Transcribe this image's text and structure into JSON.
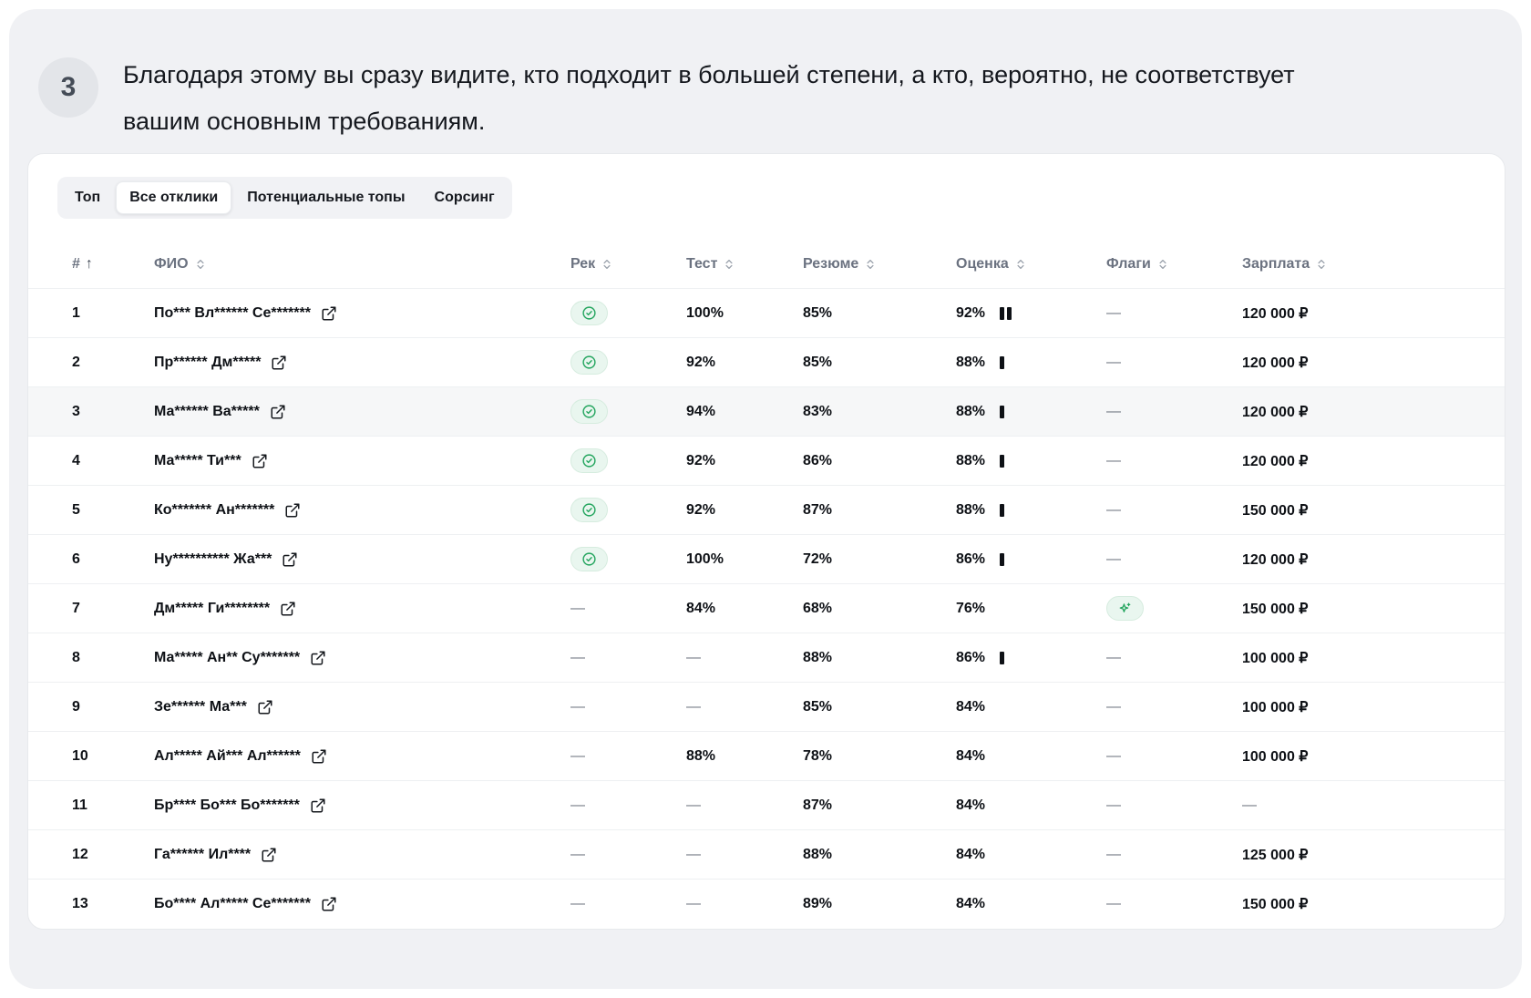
{
  "step": {
    "number": "3",
    "text": "Благодаря этому вы сразу видите, кто подходит в большей степени, а кто, вероятно, не соответствует вашим основным требованиям."
  },
  "tabs": [
    {
      "label": "Топ",
      "active": false
    },
    {
      "label": "Все отклики",
      "active": true
    },
    {
      "label": "Потенциальные топы",
      "active": false
    },
    {
      "label": "Сорсинг",
      "active": false
    }
  ],
  "colors": {
    "accent_green": "#23a55e",
    "badge_background": "#e9f6ef",
    "panel_background": "#f0f1f4",
    "row_highlight": "#f6f7f8"
  },
  "table": {
    "columns": [
      "#",
      "ФИО",
      "Рек",
      "Тест",
      "Резюме",
      "Оценка",
      "Флаги",
      "Зарплата"
    ],
    "sort_column": "#",
    "sort_direction": "ascending",
    "rows": [
      {
        "num": "1",
        "name": "По*** Вл****** Се*******",
        "rec": "check",
        "test": "100%",
        "resume": "85%",
        "score": "92%",
        "bars": 2,
        "flag": "—",
        "salary": "120 000 ₽",
        "highlighted": false
      },
      {
        "num": "2",
        "name": "Пр****** Дм*****",
        "rec": "check",
        "test": "92%",
        "resume": "85%",
        "score": "88%",
        "bars": 1,
        "flag": "—",
        "salary": "120 000 ₽",
        "highlighted": false
      },
      {
        "num": "3",
        "name": "Ма****** Ва*****",
        "rec": "check",
        "test": "94%",
        "resume": "83%",
        "score": "88%",
        "bars": 1,
        "flag": "—",
        "salary": "120 000 ₽",
        "highlighted": true
      },
      {
        "num": "4",
        "name": "Ма***** Ти***",
        "rec": "check",
        "test": "92%",
        "resume": "86%",
        "score": "88%",
        "bars": 1,
        "flag": "—",
        "salary": "120 000 ₽",
        "highlighted": false
      },
      {
        "num": "5",
        "name": "Ко******* Ан*******",
        "rec": "check",
        "test": "92%",
        "resume": "87%",
        "score": "88%",
        "bars": 1,
        "flag": "—",
        "salary": "150 000 ₽",
        "highlighted": false
      },
      {
        "num": "6",
        "name": "Ну********** Жа***",
        "rec": "check",
        "test": "100%",
        "resume": "72%",
        "score": "86%",
        "bars": 1,
        "flag": "—",
        "salary": "120 000 ₽",
        "highlighted": false
      },
      {
        "num": "7",
        "name": "Дм***** Ги********",
        "rec": "—",
        "test": "84%",
        "resume": "68%",
        "score": "76%",
        "bars": 0,
        "flag": "sparkle",
        "salary": "150 000 ₽",
        "highlighted": false
      },
      {
        "num": "8",
        "name": "Ма***** Ан** Су*******",
        "rec": "—",
        "test": "—",
        "resume": "88%",
        "score": "86%",
        "bars": 1,
        "flag": "—",
        "salary": "100 000 ₽",
        "highlighted": false
      },
      {
        "num": "9",
        "name": "Зе****** Ма***",
        "rec": "—",
        "test": "—",
        "resume": "85%",
        "score": "84%",
        "bars": 0,
        "flag": "—",
        "salary": "100 000 ₽",
        "highlighted": false
      },
      {
        "num": "10",
        "name": "Ал***** Ай*** Ал******",
        "rec": "—",
        "test": "88%",
        "resume": "78%",
        "score": "84%",
        "bars": 0,
        "flag": "—",
        "salary": "100 000 ₽",
        "highlighted": false
      },
      {
        "num": "11",
        "name": "Бр**** Бо*** Бо*******",
        "rec": "—",
        "test": "—",
        "resume": "87%",
        "score": "84%",
        "bars": 0,
        "flag": "—",
        "salary": "—",
        "highlighted": false
      },
      {
        "num": "12",
        "name": "Га****** Ил****",
        "rec": "—",
        "test": "—",
        "resume": "88%",
        "score": "84%",
        "bars": 0,
        "flag": "—",
        "salary": "125 000 ₽",
        "highlighted": false
      },
      {
        "num": "13",
        "name": "Бо**** Ал***** Се*******",
        "rec": "—",
        "test": "—",
        "resume": "89%",
        "score": "84%",
        "bars": 0,
        "flag": "—",
        "salary": "150 000 ₽",
        "highlighted": false
      }
    ]
  }
}
